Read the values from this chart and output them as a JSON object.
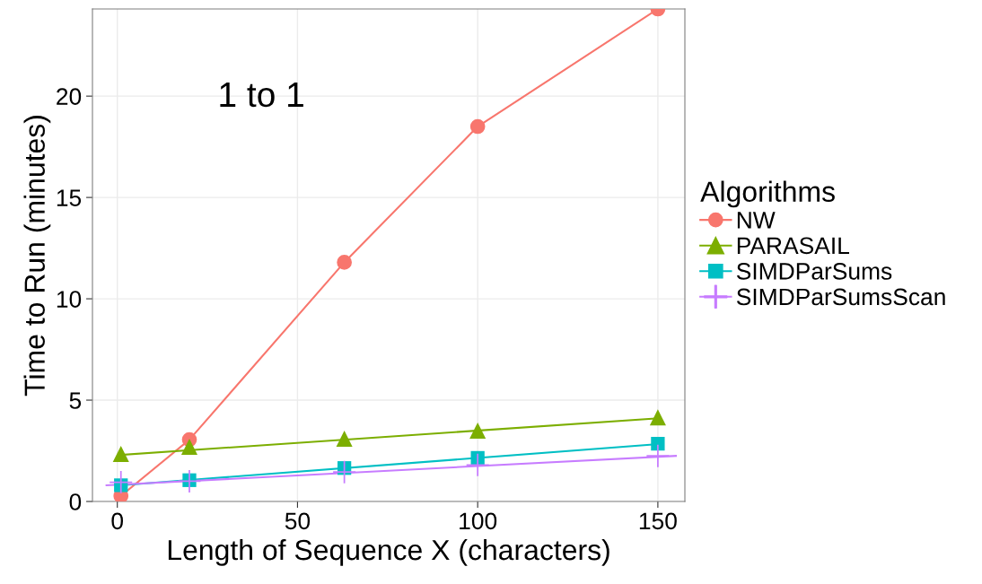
{
  "chart_data": {
    "type": "scatter",
    "xlabel": "Length of Sequence X (characters)",
    "ylabel": "Time to Run (minutes)",
    "legend_title": "Algorithms",
    "x": [
      1,
      20,
      63,
      100,
      150
    ],
    "series": [
      {
        "name": "NW",
        "type": "line",
        "color": "#f8766d",
        "marker": "circle",
        "values": [
          0.27,
          3.05,
          11.8,
          18.5,
          24.3
        ]
      },
      {
        "name": "PARASAIL",
        "color": "#7cae00",
        "marker": "triangle",
        "values": [
          2.35,
          2.7,
          3.1,
          3.5,
          4.15
        ]
      },
      {
        "name": "SIMDParSums",
        "color": "#00bfc4",
        "marker": "square",
        "values": [
          0.8,
          1.05,
          1.65,
          2.15,
          2.85
        ]
      },
      {
        "name": "SIMDParSumsScan",
        "color": "#c77cff",
        "marker": "cross",
        "values": [
          0.95,
          1.0,
          1.45,
          1.8,
          2.25
        ]
      },
      {
        "type": "line",
        "color": "#7cae00",
        "x": [
          1,
          150
        ],
        "values": [
          2.3,
          4.1
        ]
      },
      {
        "type": "line",
        "color": "#00bfc4",
        "x": [
          1,
          150
        ],
        "values": [
          0.8,
          2.83
        ]
      },
      {
        "type": "line",
        "color": "#c77cff",
        "x": [
          -3,
          155
        ],
        "values": [
          0.8,
          2.25
        ]
      }
    ],
    "annotations": [
      "1 to 1"
    ],
    "xlim": [
      -6.9,
      157.5
    ],
    "ylim": [
      0,
      24.3
    ],
    "xticks": [
      0,
      50,
      100,
      150
    ],
    "yticks": [
      0,
      5,
      10,
      15,
      20
    ],
    "grid": true,
    "legend": "right",
    "line_style": "solid"
  }
}
